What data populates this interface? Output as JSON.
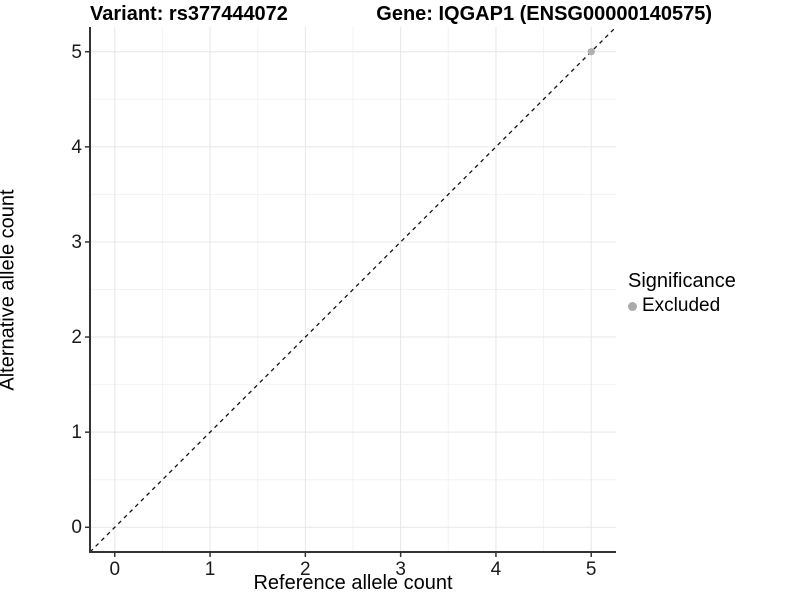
{
  "titles": {
    "variant": "Variant: rs377444072",
    "gene": "Gene: IQGAP1 (ENSG00000140575)"
  },
  "chart_data": {
    "type": "scatter",
    "title": "Variant: rs377444072 | Gene: IQGAP1 (ENSG00000140575)",
    "xlabel": "Reference allele count",
    "ylabel": "Alternative allele count",
    "xlim": [
      -0.26,
      5.26
    ],
    "ylim": [
      -0.26,
      5.26
    ],
    "x_ticks": [
      0,
      1,
      2,
      3,
      4,
      5
    ],
    "y_ticks": [
      0,
      1,
      2,
      3,
      4,
      5
    ],
    "x_minor_ticks": [
      0.5,
      1.5,
      2.5,
      3.5,
      4.5
    ],
    "y_minor_ticks": [
      0.5,
      1.5,
      2.5,
      3.5,
      4.5
    ],
    "grid": true,
    "identity_line": {
      "style": "dashed",
      "from": [
        -0.26,
        -0.26
      ],
      "to": [
        5.26,
        5.26
      ],
      "color": "#111111",
      "note": "y = x reference line"
    },
    "series": [
      {
        "name": "Excluded",
        "color": "#b0b0b0",
        "points": [
          [
            5,
            5
          ]
        ]
      }
    ],
    "legend": {
      "title": "Significance",
      "position": "right",
      "items": [
        {
          "label": "Excluded",
          "color": "#aaaaaa",
          "marker": "circle"
        }
      ]
    },
    "colors": {
      "grid_major": "#e7e7e7",
      "grid_minor": "#f3f3f3",
      "axis_line": "#333333",
      "tick_text": "#1a1a1a",
      "background": "#ffffff"
    }
  }
}
